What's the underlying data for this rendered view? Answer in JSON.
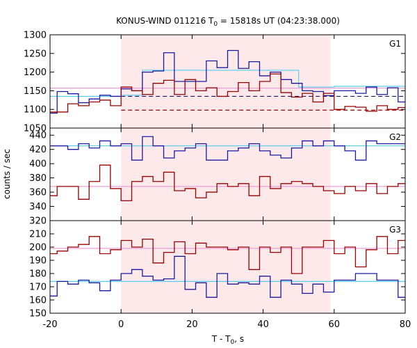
{
  "chart_data": {
    "type": "line",
    "title": "KONUS-WIND 011216 T",
    "title_sub": "0",
    "title_rest": " = 15818s UT (04:23:38.000)",
    "xlabel_main": "T - T",
    "xlabel_sub": "0",
    "xlabel_rest": ", s",
    "ylabel": "counts / sec",
    "xlim": [
      -20,
      80
    ],
    "x_ticks": [
      "-20",
      "0",
      "20",
      "40",
      "60",
      "80"
    ],
    "x_tick_values": [
      -20,
      0,
      20,
      40,
      60,
      80
    ],
    "shaded_interval": [
      0,
      59
    ],
    "shade_color": "#fde8ea",
    "colors": {
      "blue": "#1a1aa0",
      "red": "#990000",
      "light_blue": "#55ccee",
      "pink": "#e8a0d8",
      "red_dash": "#990000",
      "navy_dash": "#1a1a6a"
    },
    "bin_edges": [
      -20,
      -18,
      -15,
      -12,
      -9,
      -6,
      -3,
      0,
      3,
      6,
      9,
      12,
      15,
      18,
      21,
      24,
      27,
      30,
      33,
      36,
      39,
      42,
      45,
      48,
      51,
      54,
      57,
      60,
      63,
      66,
      69,
      72,
      75,
      78,
      80
    ],
    "panels": [
      {
        "label": "G1",
        "ylim": [
          1050,
          1300
        ],
        "y_ticks": [
          1050,
          1100,
          1150,
          1200,
          1250,
          1300
        ],
        "series": [
          {
            "color": "blue",
            "values": [
              1090,
              1148,
              1142,
              1118,
              1128,
              1138,
              1135,
              1155,
              1150,
              1200,
              1203,
              1252,
              1175,
              1175,
              1175,
              1230,
              1212,
              1258,
              1210,
              1228,
              1190,
              1200,
              1180,
              1170,
              1150,
              1148,
              1137,
              1150,
              1150,
              1143,
              1160,
              1140,
              1158,
              1120
            ]
          },
          {
            "color": "red",
            "values": [
              1093,
              1093,
              1115,
              1110,
              1120,
              1125,
              1110,
              1160,
              1150,
              1140,
              1170,
              1178,
              1140,
              1180,
              1150,
              1158,
              1135,
              1148,
              1172,
              1150,
              1175,
              1195,
              1145,
              1133,
              1143,
              1120,
              1143,
              1100,
              1108,
              1106,
              1095,
              1110,
              1100,
              1105
            ]
          }
        ],
        "fit_lines": [
          {
            "color": "light_blue",
            "style": "solid",
            "segments": [
              [
                -20,
                0,
                1135
              ],
              [
                0,
                6,
                1138
              ],
              [
                6,
                50,
                1205
              ],
              [
                50,
                60,
                1160
              ],
              [
                60,
                80,
                1162
              ]
            ]
          },
          {
            "color": "pink",
            "style": "solid",
            "segments": [
              [
                -20,
                80,
                1157
              ]
            ]
          },
          {
            "color": "navy_dash",
            "style": "dashed",
            "segments": [
              [
                0,
                80,
                1135
              ]
            ]
          },
          {
            "color": "red_dash",
            "style": "dashed",
            "segments": [
              [
                0,
                80,
                1098
              ]
            ]
          }
        ]
      },
      {
        "label": "G2",
        "ylim": [
          320,
          450
        ],
        "y_ticks": [
          320,
          340,
          360,
          380,
          400,
          420,
          440
        ],
        "series": [
          {
            "color": "blue",
            "values": [
              425,
              425,
              420,
              428,
              422,
              432,
              425,
              428,
              405,
              438,
              425,
              408,
              418,
              422,
              428,
              405,
              405,
              418,
              422,
              428,
              418,
              412,
              408,
              422,
              432,
              425,
              432,
              425,
              418,
              405,
              432,
              428,
              428,
              428
            ]
          },
          {
            "color": "red",
            "values": [
              355,
              368,
              368,
              350,
              375,
              398,
              365,
              348,
              375,
              382,
              375,
              388,
              362,
              365,
              352,
              360,
              372,
              368,
              372,
              355,
              382,
              365,
              372,
              375,
              372,
              368,
              362,
              358,
              368,
              362,
              372,
              358,
              368,
              372
            ]
          }
        ],
        "fit_lines": [
          {
            "color": "light_blue",
            "style": "solid",
            "segments": [
              [
                -20,
                80,
                425
              ]
            ]
          },
          {
            "color": "pink",
            "style": "solid",
            "segments": [
              [
                -20,
                80,
                368
              ]
            ]
          }
        ]
      },
      {
        "label": "G3",
        "ylim": [
          150,
          220
        ],
        "y_ticks": [
          150,
          160,
          170,
          180,
          190,
          200,
          210
        ],
        "series": [
          {
            "color": "blue",
            "values": [
              163,
              174,
              172,
              175,
              173,
              167,
              175,
              180,
              183,
              178,
              175,
              176,
              193,
              168,
              173,
              162,
              180,
              172,
              173,
              172,
              178,
              162,
              175,
              172,
              165,
              172,
              166,
              175,
              175,
              180,
              180,
              175,
              175,
              162
            ]
          },
          {
            "color": "red",
            "values": [
              195,
              197,
              200,
              202,
              208,
              195,
              198,
              205,
              200,
              206,
              188,
              196,
              204,
              195,
              203,
              200,
              200,
              198,
              200,
              183,
              200,
              196,
              200,
              180,
              200,
              200,
              205,
              195,
              200,
              185,
              198,
              208,
              195,
              205
            ]
          }
        ],
        "fit_lines": [
          {
            "color": "light_blue",
            "style": "solid",
            "segments": [
              [
                -20,
                80,
                174
              ]
            ]
          },
          {
            "color": "pink",
            "style": "solid",
            "segments": [
              [
                -20,
                80,
                199
              ]
            ]
          }
        ]
      }
    ]
  }
}
